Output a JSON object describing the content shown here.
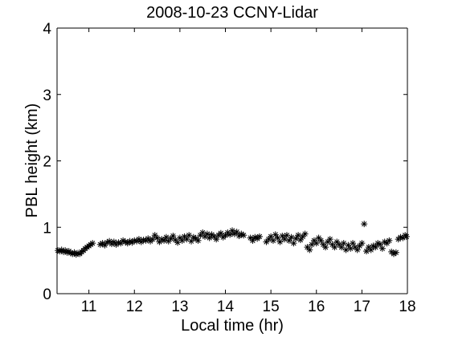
{
  "chart_data": {
    "type": "scatter",
    "title": "2008-10-23 CCNY-Lidar",
    "xlabel": "Local time (hr)",
    "ylabel": "PBL height (km)",
    "xlim": [
      10.3,
      18
    ],
    "ylim": [
      0,
      4
    ],
    "xticks": [
      "11",
      "12",
      "13",
      "14",
      "15",
      "16",
      "17",
      "18"
    ],
    "yticks": [
      "0",
      "1",
      "2",
      "3",
      "4"
    ],
    "grid": false,
    "marker": "asterisk",
    "marker_color": "#000000",
    "series": [
      {
        "points": [
          [
            10.32,
            0.65
          ],
          [
            10.36,
            0.64
          ],
          [
            10.4,
            0.66
          ],
          [
            10.44,
            0.63
          ],
          [
            10.48,
            0.65
          ],
          [
            10.52,
            0.62
          ],
          [
            10.56,
            0.64
          ],
          [
            10.6,
            0.61
          ],
          [
            10.64,
            0.6
          ],
          [
            10.68,
            0.62
          ],
          [
            10.72,
            0.59
          ],
          [
            10.76,
            0.61
          ],
          [
            10.8,
            0.6
          ],
          [
            10.84,
            0.63
          ],
          [
            10.88,
            0.65
          ],
          [
            10.92,
            0.68
          ],
          [
            10.96,
            0.7
          ],
          [
            11.0,
            0.72
          ],
          [
            11.04,
            0.74
          ],
          [
            11.08,
            0.76
          ],
          [
            11.25,
            0.74
          ],
          [
            11.3,
            0.76
          ],
          [
            11.35,
            0.73
          ],
          [
            11.4,
            0.77
          ],
          [
            11.45,
            0.79
          ],
          [
            11.5,
            0.75
          ],
          [
            11.55,
            0.78
          ],
          [
            11.6,
            0.74
          ],
          [
            11.65,
            0.77
          ],
          [
            11.7,
            0.76
          ],
          [
            11.75,
            0.8
          ],
          [
            11.8,
            0.78
          ],
          [
            11.85,
            0.76
          ],
          [
            11.9,
            0.79
          ],
          [
            11.95,
            0.77
          ],
          [
            12.0,
            0.8
          ],
          [
            12.05,
            0.79
          ],
          [
            12.1,
            0.82
          ],
          [
            12.15,
            0.78
          ],
          [
            12.2,
            0.81
          ],
          [
            12.25,
            0.8
          ],
          [
            12.3,
            0.83
          ],
          [
            12.35,
            0.79
          ],
          [
            12.4,
            0.82
          ],
          [
            12.45,
            0.88
          ],
          [
            12.5,
            0.84
          ],
          [
            12.55,
            0.78
          ],
          [
            12.6,
            0.82
          ],
          [
            12.65,
            0.8
          ],
          [
            12.7,
            0.85
          ],
          [
            12.75,
            0.79
          ],
          [
            12.8,
            0.83
          ],
          [
            12.85,
            0.87
          ],
          [
            12.9,
            0.81
          ],
          [
            12.95,
            0.77
          ],
          [
            13.0,
            0.84
          ],
          [
            13.05,
            0.8
          ],
          [
            13.1,
            0.86
          ],
          [
            13.15,
            0.82
          ],
          [
            13.2,
            0.88
          ],
          [
            13.25,
            0.79
          ],
          [
            13.3,
            0.85
          ],
          [
            13.35,
            0.83
          ],
          [
            13.4,
            0.8
          ],
          [
            13.45,
            0.88
          ],
          [
            13.5,
            0.92
          ],
          [
            13.55,
            0.86
          ],
          [
            13.6,
            0.9
          ],
          [
            13.65,
            0.84
          ],
          [
            13.7,
            0.89
          ],
          [
            13.75,
            0.86
          ],
          [
            13.8,
            0.82
          ],
          [
            13.85,
            0.88
          ],
          [
            13.9,
            0.91
          ],
          [
            13.95,
            0.85
          ],
          [
            14.0,
            0.88
          ],
          [
            14.05,
            0.92
          ],
          [
            14.1,
            0.89
          ],
          [
            14.15,
            0.95
          ],
          [
            14.2,
            0.9
          ],
          [
            14.25,
            0.93
          ],
          [
            14.3,
            0.87
          ],
          [
            14.35,
            0.9
          ],
          [
            14.4,
            0.88
          ],
          [
            14.55,
            0.84
          ],
          [
            14.6,
            0.8
          ],
          [
            14.65,
            0.85
          ],
          [
            14.7,
            0.83
          ],
          [
            14.75,
            0.86
          ],
          [
            14.9,
            0.78
          ],
          [
            14.95,
            0.82
          ],
          [
            15.0,
            0.86
          ],
          [
            15.05,
            0.8
          ],
          [
            15.1,
            0.89
          ],
          [
            15.15,
            0.84
          ],
          [
            15.2,
            0.78
          ],
          [
            15.25,
            0.87
          ],
          [
            15.3,
            0.82
          ],
          [
            15.35,
            0.88
          ],
          [
            15.4,
            0.8
          ],
          [
            15.45,
            0.85
          ],
          [
            15.5,
            0.76
          ],
          [
            15.55,
            0.83
          ],
          [
            15.6,
            0.88
          ],
          [
            15.65,
            0.81
          ],
          [
            15.7,
            0.86
          ],
          [
            15.75,
            0.9
          ],
          [
            15.8,
            0.7
          ],
          [
            15.85,
            0.66
          ],
          [
            15.9,
            0.74
          ],
          [
            15.95,
            0.8
          ],
          [
            16.0,
            0.76
          ],
          [
            16.05,
            0.84
          ],
          [
            16.1,
            0.8
          ],
          [
            16.15,
            0.74
          ],
          [
            16.2,
            0.7
          ],
          [
            16.25,
            0.78
          ],
          [
            16.3,
            0.82
          ],
          [
            16.35,
            0.74
          ],
          [
            16.4,
            0.7
          ],
          [
            16.45,
            0.78
          ],
          [
            16.5,
            0.74
          ],
          [
            16.55,
            0.7
          ],
          [
            16.6,
            0.76
          ],
          [
            16.65,
            0.66
          ],
          [
            16.7,
            0.73
          ],
          [
            16.75,
            0.68
          ],
          [
            16.8,
            0.76
          ],
          [
            16.85,
            0.7
          ],
          [
            16.9,
            0.66
          ],
          [
            16.95,
            0.72
          ],
          [
            17.0,
            0.76
          ],
          [
            17.05,
            1.05
          ],
          [
            17.1,
            0.64
          ],
          [
            17.15,
            0.7
          ],
          [
            17.2,
            0.66
          ],
          [
            17.25,
            0.72
          ],
          [
            17.3,
            0.7
          ],
          [
            17.35,
            0.76
          ],
          [
            17.4,
            0.74
          ],
          [
            17.45,
            0.68
          ],
          [
            17.5,
            0.78
          ],
          [
            17.55,
            0.76
          ],
          [
            17.6,
            0.8
          ],
          [
            17.65,
            0.63
          ],
          [
            17.7,
            0.6
          ],
          [
            17.75,
            0.62
          ],
          [
            17.8,
            0.82
          ],
          [
            17.85,
            0.85
          ],
          [
            17.9,
            0.84
          ],
          [
            17.95,
            0.88
          ],
          [
            17.98,
            0.86
          ]
        ]
      }
    ]
  }
}
